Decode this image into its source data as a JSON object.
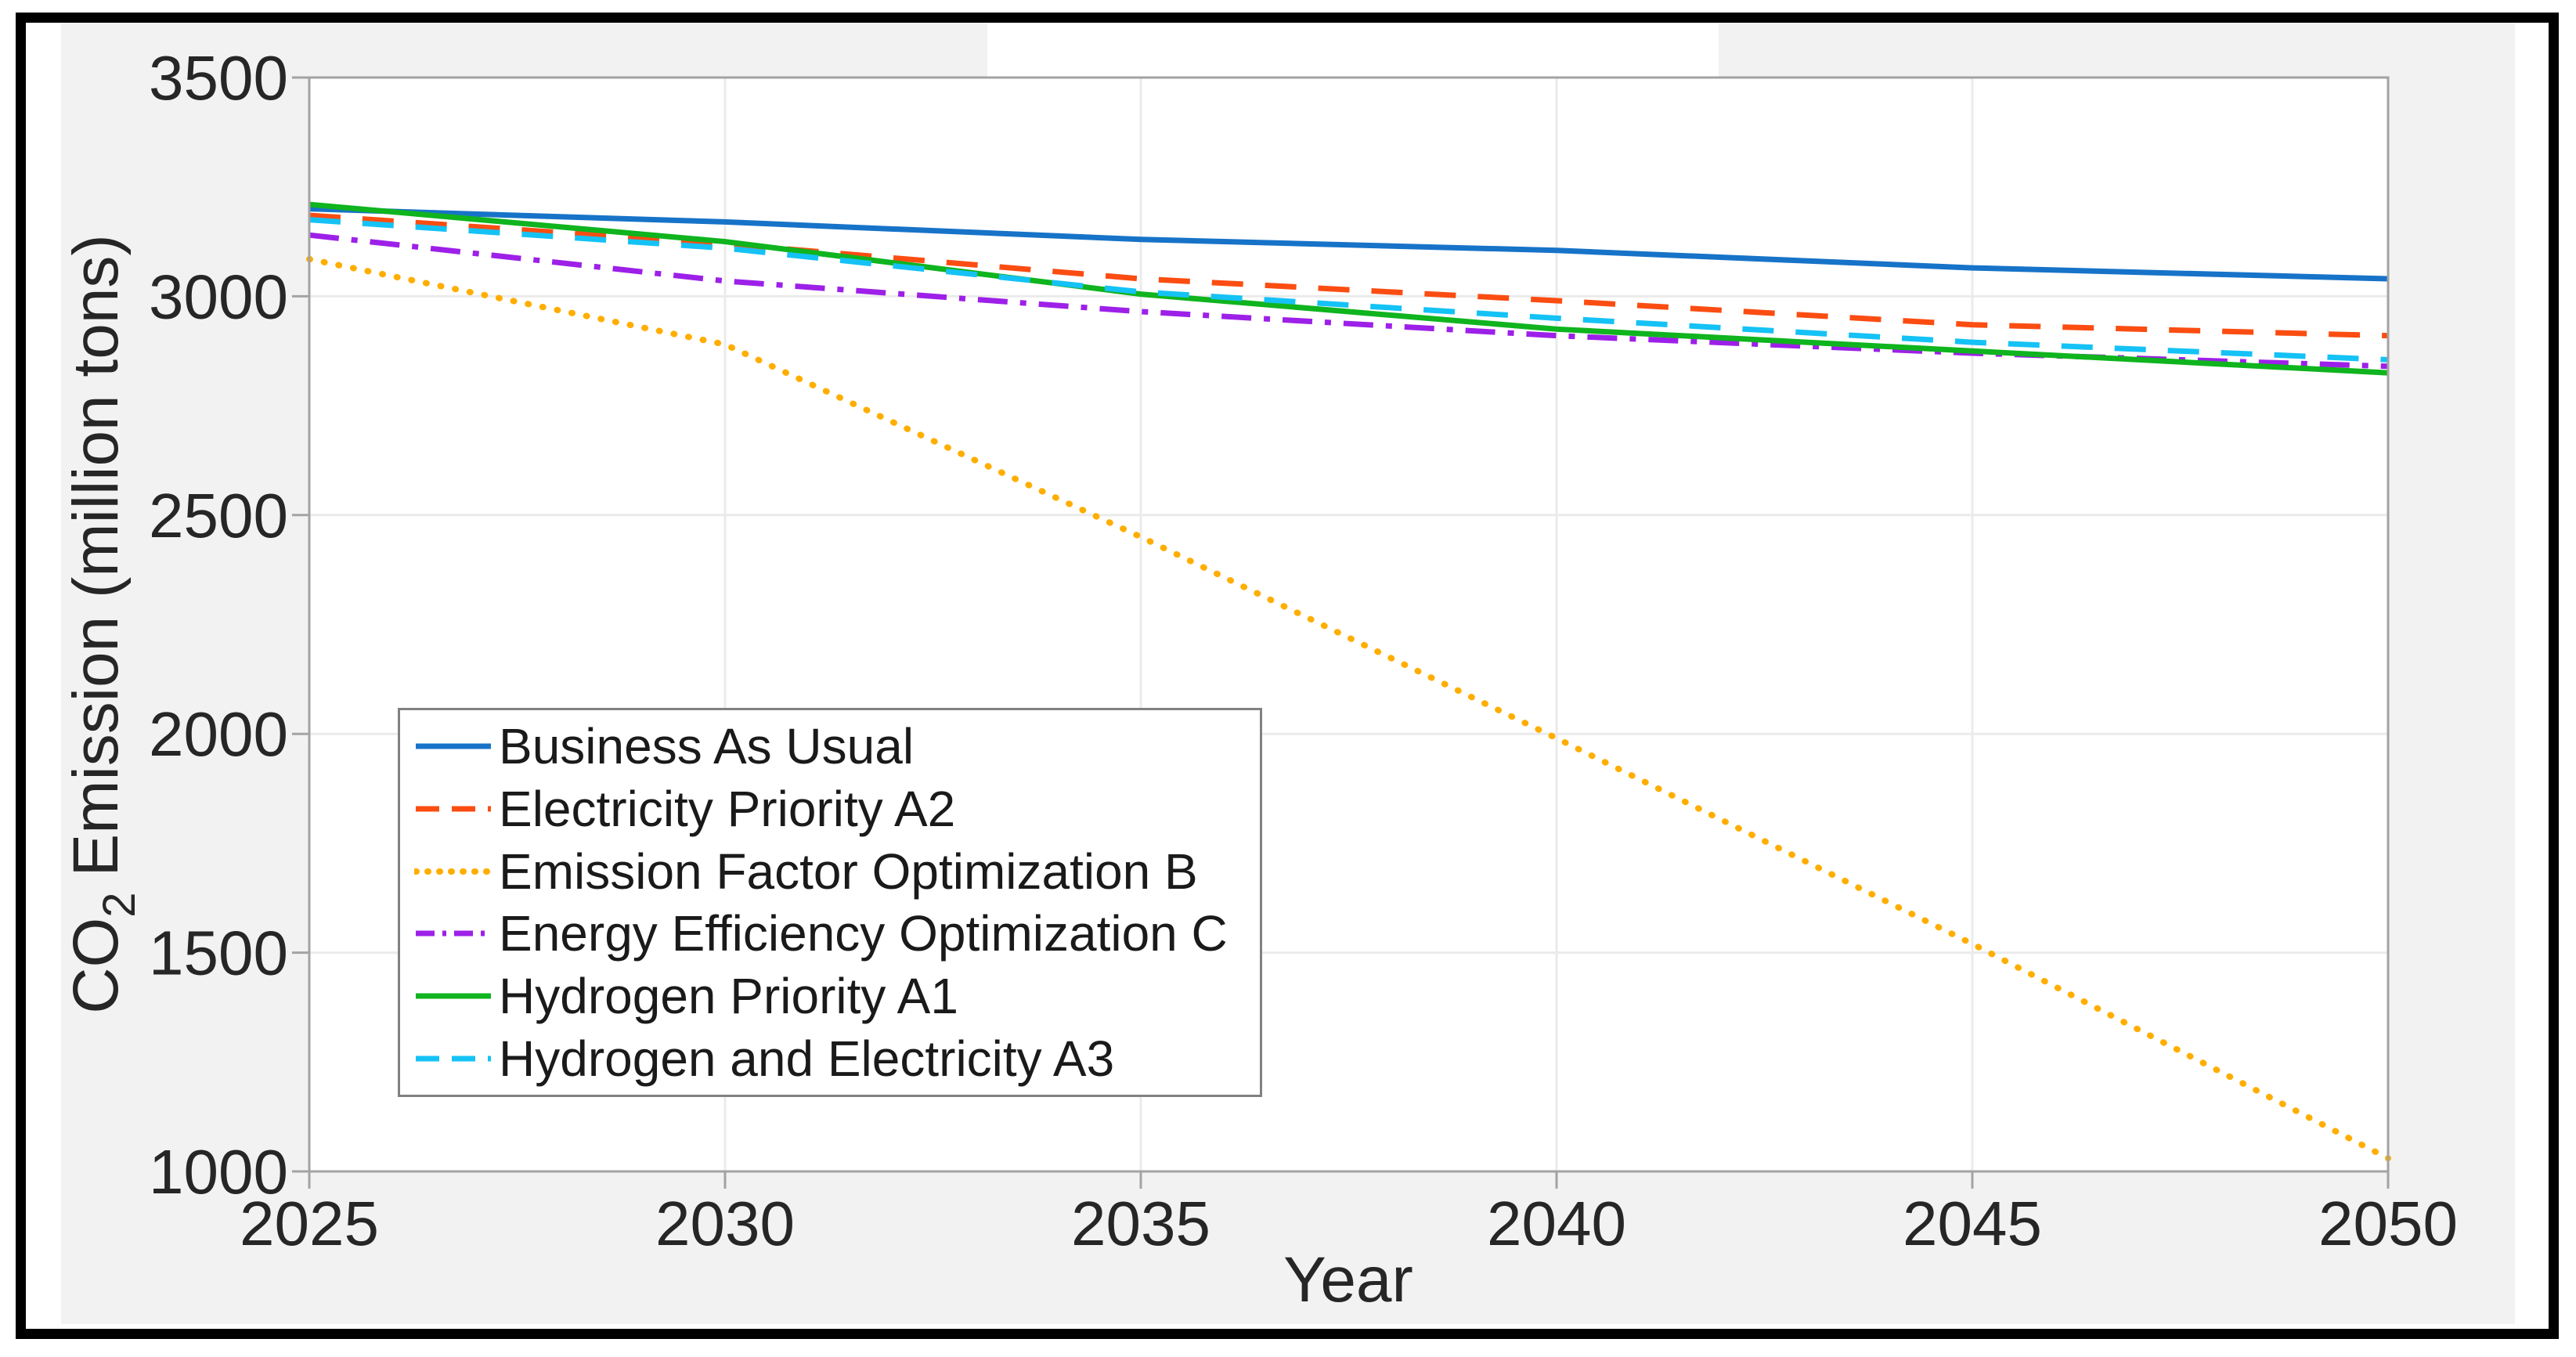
{
  "figure": {
    "background_color": "#F2F2F2",
    "plot_background_color": "#FFFFFF",
    "grid_color": "#EBEBEB",
    "axis_color": "#A3A3A3",
    "tick_label_color": "#262626",
    "outer_border_color": "#000000",
    "legend_border_color": "#818181"
  },
  "chart_data": {
    "type": "line",
    "title": "",
    "xlabel": "Year",
    "ylabel_prefix": "CO",
    "ylabel_sub": "2",
    "ylabel_suffix": "Emission (million tons)",
    "ylabel_full": "CO2 Emission (million tons)",
    "x": [
      2025,
      2030,
      2035,
      2040,
      2045,
      2050
    ],
    "xlim": [
      2025,
      2050
    ],
    "ylim": [
      1000,
      3500
    ],
    "x_ticks": [
      2025,
      2030,
      2035,
      2040,
      2045,
      2050
    ],
    "y_ticks": [
      1000,
      1500,
      2000,
      2500,
      3000,
      3500
    ],
    "grid": true,
    "legend_position": "inside lower-left",
    "series": [
      {
        "name": "Business As Usual",
        "color": "#1773C8",
        "style": "solid",
        "values": [
          3200,
          3170,
          3130,
          3105,
          3065,
          3040
        ]
      },
      {
        "name": "Electricity Priority A2",
        "color": "#FB4D12",
        "style": "dashed",
        "values": [
          3185,
          3120,
          3040,
          2990,
          2935,
          2910
        ]
      },
      {
        "name": "Emission Factor Optimization B",
        "color": "#FFAE00",
        "style": "dotted",
        "values": [
          3085,
          2890,
          2450,
          1990,
          1520,
          1030
        ]
      },
      {
        "name": "Energy Efficiency Optimization C",
        "color": "#9D20E8",
        "style": "dashdot",
        "values": [
          3140,
          3035,
          2965,
          2910,
          2870,
          2840
        ]
      },
      {
        "name": "Hydrogen Priority A1",
        "color": "#0FB41E",
        "style": "solid",
        "values": [
          3210,
          3125,
          3005,
          2925,
          2875,
          2825
        ]
      },
      {
        "name": "Hydrogen and Electricity A3",
        "color": "#15C2F5",
        "style": "dashed",
        "values": [
          3175,
          3110,
          3010,
          2950,
          2895,
          2855
        ]
      }
    ]
  }
}
